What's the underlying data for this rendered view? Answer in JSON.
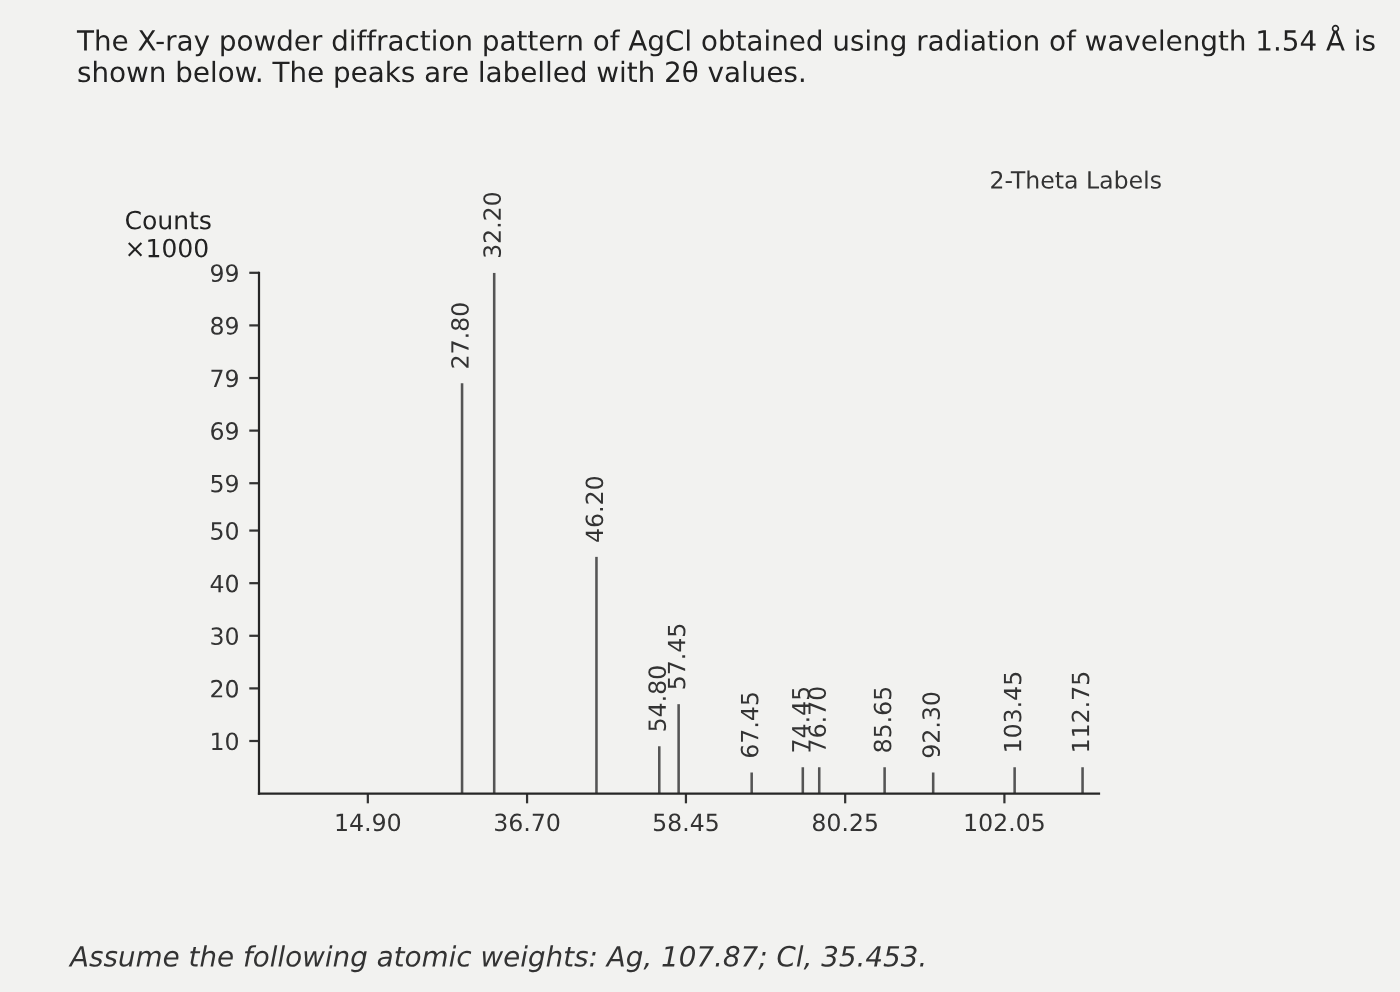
{
  "chart_data": {
    "type": "bar",
    "title": "The X-ray powder diffraction pattern of AgCl obtained using radiation of wavelength 1.54 Å is shown below. The peaks are labelled with 2θ values.",
    "ylabel": "Counts\n×1000",
    "annotations": [
      "2-Theta Labels",
      "Assume the following atomic weights: Ag, 107.87; Cl, 35.453.",
      {
        "text": "27.80",
        "x": 27.8,
        "y": 78
      },
      {
        "text": "32.20",
        "x": 32.2,
        "y": 99
      },
      {
        "text": "46.20",
        "x": 46.2,
        "y": 45
      },
      {
        "text": "54.80",
        "x": 54.8,
        "y": 9
      },
      {
        "text": "57.45",
        "x": 57.45,
        "y": 17
      },
      {
        "text": "67.45",
        "x": 67.45,
        "y": 4
      },
      {
        "text": "74.45",
        "x": 74.45,
        "y": 5
      },
      {
        "text": "76.70",
        "x": 76.7,
        "y": 5
      },
      {
        "text": "85.65",
        "x": 85.65,
        "y": 5
      },
      {
        "text": "92.30",
        "x": 92.3,
        "y": 4
      },
      {
        "text": "103.45",
        "x": 103.45,
        "y": 5
      },
      {
        "text": "112.75",
        "x": 112.75,
        "y": 5
      }
    ],
    "x": [
      27.8,
      32.2,
      46.2,
      54.8,
      57.45,
      67.45,
      74.45,
      76.7,
      85.65,
      92.3,
      103.45,
      112.75
    ],
    "values": [
      78,
      99,
      45,
      9,
      17,
      4,
      5,
      5,
      5,
      4,
      5,
      5
    ],
    "color": "#555555",
    "xlim": [
      0,
      115
    ],
    "xticks": [
      {
        "value": 14.9,
        "label": "14.90"
      },
      {
        "value": 36.7,
        "label": "36.70"
      },
      {
        "value": 58.45,
        "label": "58.45"
      },
      {
        "value": 80.25,
        "label": "80.25"
      },
      {
        "value": 102.05,
        "label": "102.05"
      }
    ],
    "ylim": [
      0,
      99
    ],
    "yticks": [
      10,
      20,
      30,
      40,
      50,
      59,
      69,
      79,
      89,
      99
    ],
    "grid": false
  }
}
